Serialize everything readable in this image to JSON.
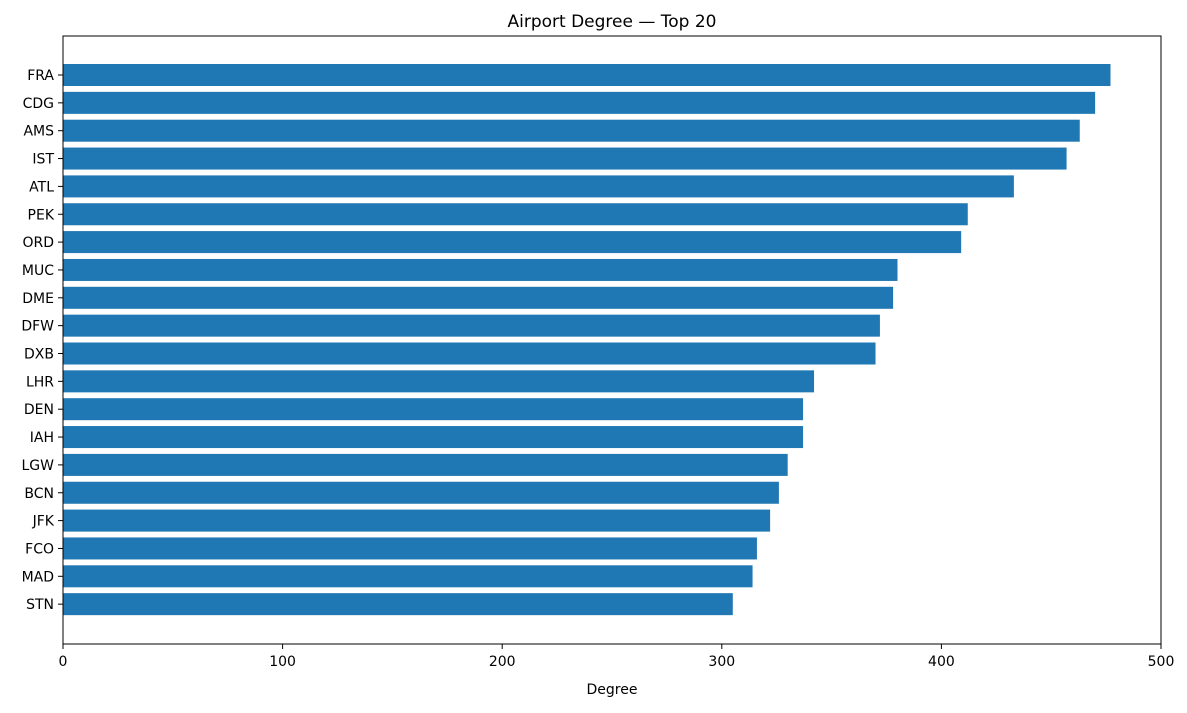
{
  "chart_data": {
    "type": "bar",
    "orientation": "horizontal",
    "title": "Airport Degree — Top 20",
    "xlabel": "Degree",
    "ylabel": "",
    "xlim": [
      0,
      500
    ],
    "xticks": [
      0,
      100,
      200,
      300,
      400,
      500
    ],
    "grid": false,
    "bar_color": "#1f77b4",
    "categories": [
      "FRA",
      "CDG",
      "AMS",
      "IST",
      "ATL",
      "PEK",
      "ORD",
      "MUC",
      "DME",
      "DFW",
      "DXB",
      "LHR",
      "DEN",
      "IAH",
      "LGW",
      "BCN",
      "JFK",
      "FCO",
      "MAD",
      "STN"
    ],
    "values": [
      477,
      470,
      463,
      457,
      433,
      412,
      409,
      380,
      378,
      372,
      370,
      342,
      337,
      337,
      330,
      326,
      322,
      316,
      314,
      305
    ]
  }
}
